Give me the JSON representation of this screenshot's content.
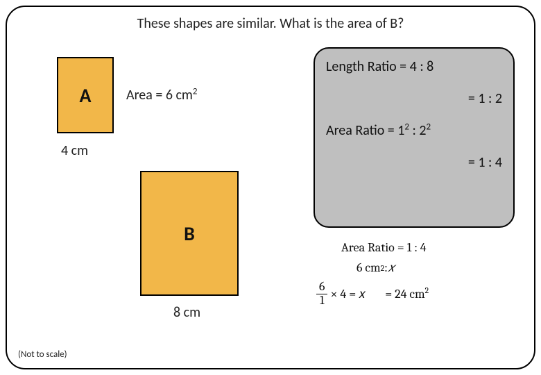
{
  "title": "These shapes are similar. What is the area of B?",
  "shapes": {
    "A": {
      "label": "A",
      "width_label": "4 cm",
      "area_label_prefix": "Area = 6 cm",
      "area_label_exp": "2",
      "bg": "#f2b749",
      "border": "#000000"
    },
    "B": {
      "label": "B",
      "width_label": "8 cm",
      "bg": "#f2b749",
      "border": "#000000"
    }
  },
  "panel": {
    "bg": "#bfbfbf",
    "line1": "Length Ratio = 4 : 8",
    "line2": "= 1 : 2",
    "line3_prefix": "Area Ratio = 1",
    "line3_exp1": "2",
    "line3_mid": " : 2",
    "line3_exp2": "2",
    "line4": "= 1 : 4"
  },
  "math": {
    "eq1": "Area Ratio = 1 : 4",
    "eq2_num": "6 cm",
    "eq2_exp": "2",
    "eq2_colon": ": ",
    "eq2_x": "𝑥",
    "eq3_frac_num": "6",
    "eq3_frac_den": "1",
    "eq3_mid": " × 4 = 𝑥",
    "eq3_rhs_prefix": "= 24 cm",
    "eq3_rhs_exp": "2"
  },
  "note": "(Not to scale)"
}
